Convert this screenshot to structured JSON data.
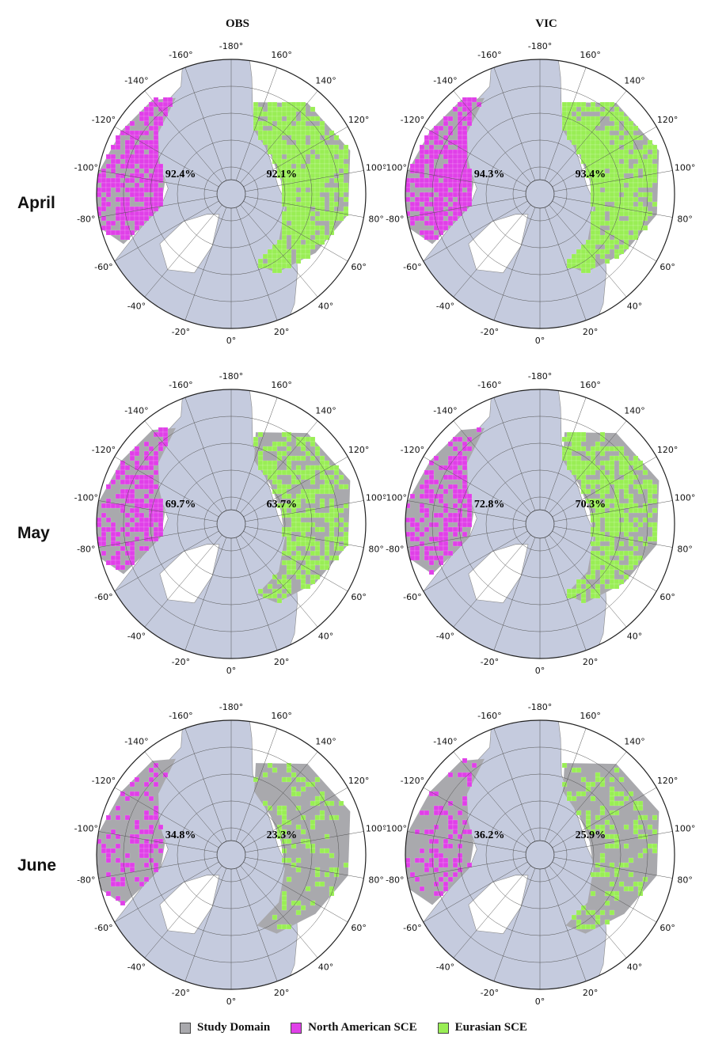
{
  "columns": [
    "OBS",
    "VIC"
  ],
  "rows": [
    "April",
    "May",
    "June"
  ],
  "ring_labels": [
    "-180°",
    "160°",
    "140°",
    "120°",
    "100°",
    "80°",
    "60°",
    "40°",
    "20°",
    "0°",
    "-20°",
    "-40°",
    "-60°",
    "-80°",
    "-100°",
    "-120°",
    "-140°",
    "-160°"
  ],
  "maps": [
    {
      "month": "April",
      "source": "OBS",
      "na_sce": "92.4%",
      "eu_sce": "92.1%",
      "na_fill": 0.924,
      "eu_fill": 0.921
    },
    {
      "month": "April",
      "source": "VIC",
      "na_sce": "94.3%",
      "eu_sce": "93.4%",
      "na_fill": 0.943,
      "eu_fill": 0.934
    },
    {
      "month": "May",
      "source": "OBS",
      "na_sce": "69.7%",
      "eu_sce": "63.7%",
      "na_fill": 0.697,
      "eu_fill": 0.637
    },
    {
      "month": "May",
      "source": "VIC",
      "na_sce": "72.8%",
      "eu_sce": "70.3%",
      "na_fill": 0.728,
      "eu_fill": 0.703
    },
    {
      "month": "June",
      "source": "OBS",
      "na_sce": "34.8%",
      "eu_sce": "23.3%",
      "na_fill": 0.348,
      "eu_fill": 0.233
    },
    {
      "month": "June",
      "source": "VIC",
      "na_sce": "36.2%",
      "eu_sce": "25.9%",
      "na_fill": 0.362,
      "eu_fill": 0.259
    }
  ],
  "legend": [
    {
      "label": "Study Domain",
      "color": "#a9a9ad"
    },
    {
      "label": "North American SCE",
      "color": "#e040e8"
    },
    {
      "label": "Eurasian SCE",
      "color": "#99ee55"
    }
  ],
  "colors": {
    "ocean": "#c5cbde",
    "land": "#ffffff",
    "domain": "#a9a9ad",
    "na": "#e040e8",
    "eu": "#99ee55"
  }
}
